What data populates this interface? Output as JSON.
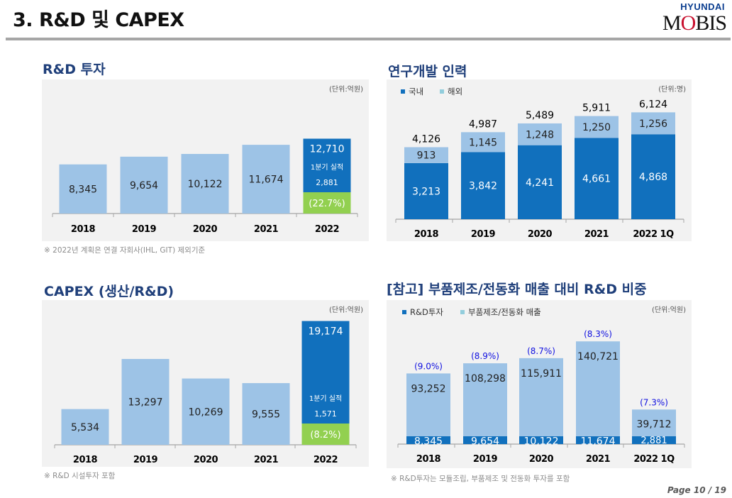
{
  "header": {
    "title": "3. R&D 및 CAPEX",
    "logo_top": "HYUNDAI",
    "logo_bottom": "MOBIS"
  },
  "footer": {
    "page": "Page 10 / 19"
  },
  "colors": {
    "dark_bar": "#1170bd",
    "light_bar": "#9dc3e6",
    "green": "#92d050",
    "title": "#1f3f7a",
    "ratio_text": "#1010e0",
    "panel_bg": "#f2f2f2"
  },
  "sections": {
    "rnd": {
      "title": "R&D 투자",
      "unit": "(단위:억원)",
      "note": "※ 2022년 계획은 연결 자회사(IHL, GIT) 제외기준"
    },
    "staff": {
      "title": "연구개발 인력",
      "unit": "(단위:명)"
    },
    "capex": {
      "title": "CAPEX (생산/R&D)",
      "unit": "(단위:억원)",
      "note": "※ R&D 시설투자 포함"
    },
    "ratio": {
      "title": "[참고] 부품제조/전동화 매출 대비 R&D 비중",
      "unit": "(단위:억원)",
      "note": "※ R&D투자는 모듈조립, 부품제조 및 전동화 투자를 포함"
    }
  },
  "chart_data": [
    {
      "id": "rnd",
      "type": "bar",
      "title": "R&D 투자",
      "categories": [
        "2018",
        "2019",
        "2020",
        "2021",
        "2022"
      ],
      "values": [
        8345,
        9654,
        10122,
        11674,
        12710
      ],
      "highlight": {
        "category": "2022",
        "sub_label": "1분기 실적",
        "sub_value": 2881,
        "pct": "(22.7%)"
      }
    },
    {
      "id": "staff",
      "type": "bar",
      "stacked": true,
      "title": "연구개발 인력",
      "categories": [
        "2018",
        "2019",
        "2020",
        "2021",
        "2022 1Q"
      ],
      "series": [
        {
          "name": "국내",
          "values": [
            3213,
            3842,
            4241,
            4661,
            4868
          ]
        },
        {
          "name": "해외",
          "values": [
            913,
            1145,
            1248,
            1250,
            1256
          ]
        }
      ],
      "totals": [
        4126,
        4987,
        5489,
        5911,
        6124
      ],
      "legend": "top-left"
    },
    {
      "id": "capex",
      "type": "bar",
      "title": "CAPEX (생산/R&D)",
      "categories": [
        "2018",
        "2019",
        "2020",
        "2021",
        "2022"
      ],
      "values": [
        5534,
        13297,
        10269,
        9555,
        19174
      ],
      "highlight": {
        "category": "2022",
        "sub_label": "1분기 실적",
        "sub_value": 1571,
        "pct": "(8.2%)"
      }
    },
    {
      "id": "ratio",
      "type": "bar",
      "stacked": true,
      "title": "[참고] 부품제조/전동화 매출 대비 R&D 비중",
      "categories": [
        "2018",
        "2019",
        "2020",
        "2021",
        "2022 1Q"
      ],
      "series": [
        {
          "name": "R&D투자",
          "values": [
            8345,
            9654,
            10122,
            11674,
            2881
          ]
        },
        {
          "name": "부품제조/전동화 매출",
          "values": [
            93252,
            108298,
            115911,
            140721,
            39712
          ]
        }
      ],
      "ratios": [
        "(9.0%)",
        "(8.9%)",
        "(8.7%)",
        "(8.3%)",
        "(7.3%)"
      ],
      "legend": "top-left"
    }
  ]
}
